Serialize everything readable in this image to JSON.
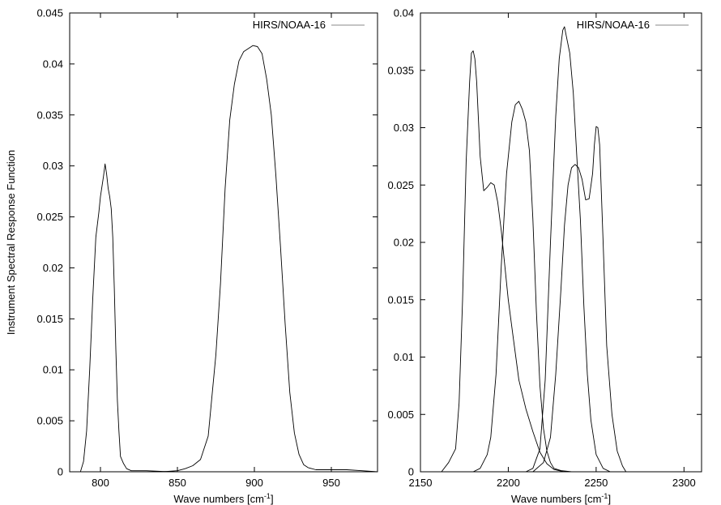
{
  "ylabel": "Instrument Spectral Response Function",
  "chart_data": [
    {
      "type": "line",
      "legend": "HIRS/NOAA-16",
      "xlabel": "Wave numbers [cm",
      "xlabel_sup": "-1",
      "xlabel_end": "]",
      "xlim": [
        780,
        980
      ],
      "ylim": [
        0,
        0.045
      ],
      "xticks": [
        800,
        850,
        900,
        950
      ],
      "yticks": [
        0,
        0.005,
        0.01,
        0.015,
        0.02,
        0.025,
        0.03,
        0.035,
        0.04,
        0.045
      ],
      "xtick_labels": [
        "800",
        "850",
        "900",
        "950"
      ],
      "ytick_labels": [
        "0",
        "0.005",
        "0.01",
        "0.015",
        "0.02",
        "0.025",
        "0.03",
        "0.035",
        "0.04",
        "0.045"
      ],
      "series": [
        {
          "x": [
            787,
            789,
            791,
            793,
            795,
            797,
            799,
            800,
            801,
            802,
            803,
            804,
            805,
            806,
            807,
            808,
            809,
            810,
            811,
            812,
            813,
            815,
            817,
            820,
            830,
            845
          ],
          "y": [
            0,
            0.001,
            0.004,
            0.01,
            0.017,
            0.023,
            0.0255,
            0.027,
            0.028,
            0.029,
            0.0302,
            0.0292,
            0.0278,
            0.027,
            0.0258,
            0.023,
            0.018,
            0.012,
            0.007,
            0.004,
            0.0015,
            0.0008,
            0.0003,
            0.0001,
            0.0001,
            0
          ]
        },
        {
          "x": [
            840,
            850,
            855,
            860,
            865,
            870,
            875,
            878,
            881,
            884,
            887,
            890,
            893,
            896,
            899,
            902,
            905,
            908,
            911,
            914,
            917,
            920,
            923,
            926,
            929,
            932,
            935,
            940,
            950,
            960,
            970,
            980
          ],
          "y": [
            0,
            0.0001,
            0.0003,
            0.0006,
            0.0012,
            0.0035,
            0.0115,
            0.0185,
            0.0278,
            0.0345,
            0.038,
            0.0403,
            0.0412,
            0.0415,
            0.0418,
            0.0417,
            0.041,
            0.0385,
            0.035,
            0.029,
            0.022,
            0.0145,
            0.0078,
            0.0038,
            0.0017,
            0.0007,
            0.0004,
            0.0002,
            0.0002,
            0.0002,
            0.0001,
            0
          ]
        }
      ]
    },
    {
      "type": "line",
      "legend": "HIRS/NOAA-16",
      "xlabel": "Wave numbers [cm",
      "xlabel_sup": "-1",
      "xlabel_end": "]",
      "xlim": [
        2150,
        2310
      ],
      "ylim": [
        0,
        0.04
      ],
      "xticks": [
        2150,
        2200,
        2250,
        2300
      ],
      "yticks": [
        0,
        0.005,
        0.01,
        0.015,
        0.02,
        0.025,
        0.03,
        0.035,
        0.04
      ],
      "xtick_labels": [
        "2150",
        "2200",
        "2250",
        "2300"
      ],
      "ytick_labels": [
        "0",
        "0.005",
        "0.01",
        "0.015",
        "0.02",
        "0.025",
        "0.03",
        "0.035",
        "0.04"
      ],
      "series": [
        {
          "x": [
            2162,
            2166,
            2170,
            2172,
            2174,
            2176,
            2178,
            2179,
            2180,
            2181,
            2182,
            2184,
            2186,
            2188,
            2190,
            2192,
            2194,
            2196,
            2198,
            2200,
            2203,
            2206,
            2210,
            2214,
            2218,
            2222,
            2226,
            2232
          ],
          "y": [
            0,
            0.0008,
            0.002,
            0.006,
            0.015,
            0.027,
            0.034,
            0.0365,
            0.0367,
            0.036,
            0.034,
            0.0275,
            0.0245,
            0.0248,
            0.0252,
            0.025,
            0.0235,
            0.021,
            0.018,
            0.015,
            0.0115,
            0.008,
            0.0055,
            0.0035,
            0.0017,
            0.0007,
            0.0002,
            0
          ]
        },
        {
          "x": [
            2180,
            2184,
            2188,
            2190,
            2193,
            2196,
            2199,
            2202,
            2204,
            2206,
            2208,
            2210,
            2212,
            2214,
            2216,
            2218,
            2220,
            2222,
            2224,
            2226,
            2230,
            2236
          ],
          "y": [
            0,
            0.0003,
            0.0015,
            0.003,
            0.0085,
            0.018,
            0.026,
            0.0305,
            0.032,
            0.0323,
            0.0316,
            0.0305,
            0.028,
            0.022,
            0.014,
            0.0075,
            0.0038,
            0.0018,
            0.0008,
            0.0003,
            0.0001,
            0
          ]
        },
        {
          "x": [
            2210,
            2214,
            2218,
            2221,
            2224,
            2227,
            2229,
            2231,
            2232,
            2233,
            2235,
            2237,
            2239,
            2241,
            2243,
            2245,
            2247,
            2250,
            2254,
            2258
          ],
          "y": [
            0,
            0.0003,
            0.002,
            0.008,
            0.02,
            0.031,
            0.036,
            0.0385,
            0.0388,
            0.038,
            0.0365,
            0.033,
            0.0275,
            0.022,
            0.0145,
            0.0085,
            0.0045,
            0.0015,
            0.0003,
            0
          ]
        },
        {
          "x": [
            2214,
            2220,
            2224,
            2227,
            2230,
            2232,
            2234,
            2236,
            2238,
            2240,
            2242,
            2244,
            2246,
            2248,
            2249,
            2250,
            2251,
            2252,
            2254,
            2256,
            2259,
            2262,
            2265,
            2267
          ],
          "y": [
            0,
            0.0008,
            0.003,
            0.0085,
            0.016,
            0.0215,
            0.025,
            0.0265,
            0.0268,
            0.0265,
            0.0255,
            0.0237,
            0.0238,
            0.026,
            0.0285,
            0.0301,
            0.03,
            0.0285,
            0.02,
            0.011,
            0.005,
            0.0018,
            0.0005,
            0
          ]
        }
      ]
    }
  ]
}
